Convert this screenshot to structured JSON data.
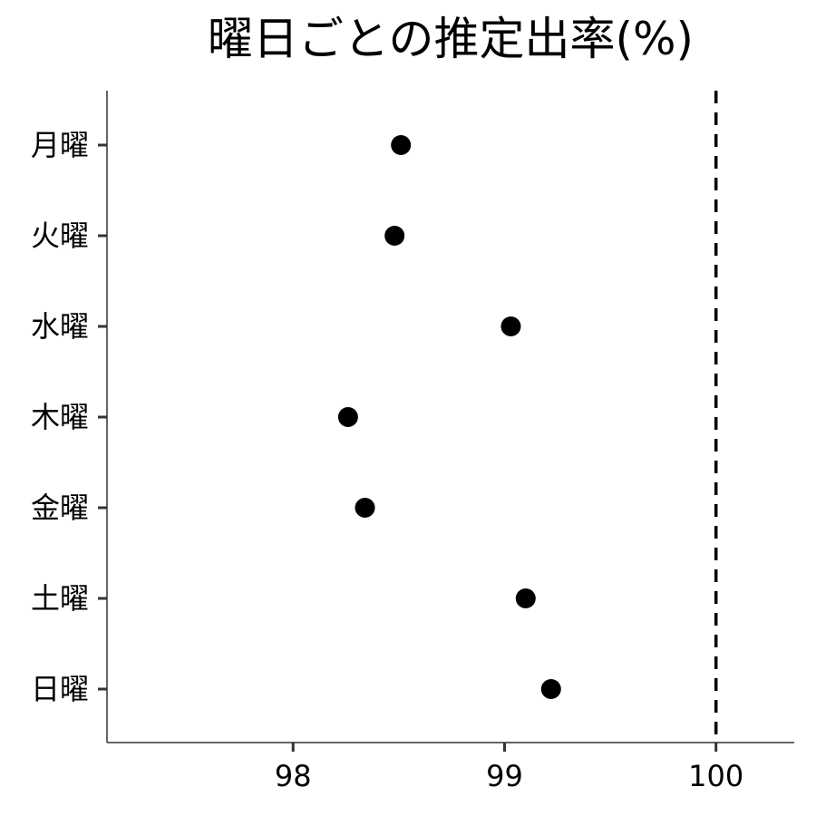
{
  "chart_data": {
    "type": "scatter",
    "title": "曜日ごとの推定出率(%)",
    "xlabel": "",
    "ylabel": "",
    "categories": [
      "月曜",
      "火曜",
      "水曜",
      "木曜",
      "金曜",
      "土曜",
      "日曜"
    ],
    "values": [
      98.51,
      98.48,
      99.03,
      98.26,
      98.34,
      99.1,
      99.22
    ],
    "x_ticks": [
      "98",
      "99",
      "100"
    ],
    "xlim": [
      97.12,
      100.37
    ],
    "reference_line": {
      "x": 100,
      "style": "dashed"
    },
    "grid": false,
    "legend": "none",
    "colors": {
      "point": "#000000",
      "axis": "#333333",
      "reference_line": "#000000"
    }
  }
}
